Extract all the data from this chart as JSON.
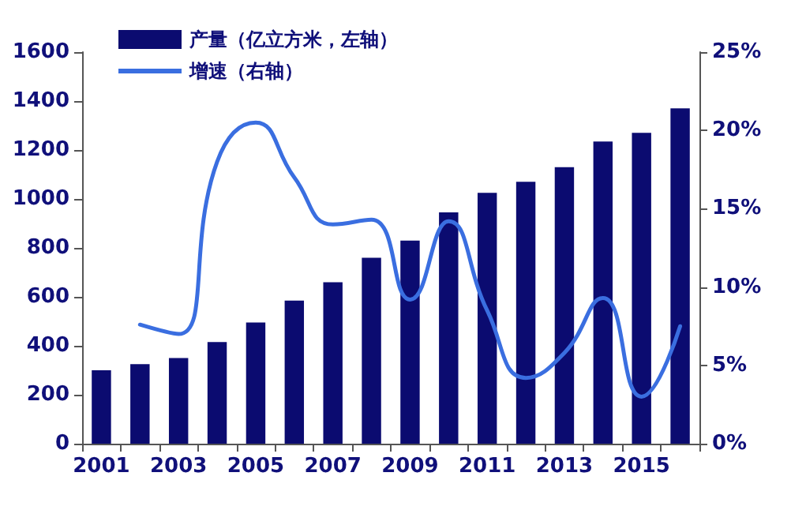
{
  "chart_data": {
    "type": "bar",
    "categories": [
      "2001",
      null,
      "2003",
      null,
      "2005",
      null,
      "2007",
      null,
      "2009",
      null,
      "2011",
      null,
      "2013",
      null,
      "2015",
      null
    ],
    "series": [
      {
        "name": "产量（亿立方米，左轴）",
        "color": "#0b0b70",
        "values": [
          300,
          325,
          350,
          415,
          495,
          585,
          660,
          760,
          830,
          945,
          1025,
          1070,
          1130,
          1235,
          1270,
          1370
        ]
      },
      {
        "name": "增速（右轴）",
        "type": "line",
        "axis": "y2",
        "color": "#3a6ee0",
        "values": [
          null,
          7.6,
          7.0,
          18,
          20.5,
          17,
          14,
          14.3,
          9.2,
          14.2,
          8.5,
          4.2,
          5.8,
          9.3,
          3.0,
          7.5
        ]
      }
    ],
    "ylim": [
      0,
      1600
    ],
    "yticks": [
      0,
      200,
      400,
      600,
      800,
      1000,
      1200,
      1400,
      1600
    ],
    "y2lim": [
      0,
      25
    ],
    "y2ticks": [
      {
        "value": 0,
        "label": "0%"
      },
      {
        "value": 5,
        "label": "5%"
      },
      {
        "value": 10,
        "label": "10%"
      },
      {
        "value": 15,
        "label": "15%"
      },
      {
        "value": 20,
        "label": "20%"
      },
      {
        "value": 25,
        "label": "25%"
      }
    ],
    "legend": "top left",
    "grid": false,
    "marker": "none",
    "line_style": "solid"
  }
}
